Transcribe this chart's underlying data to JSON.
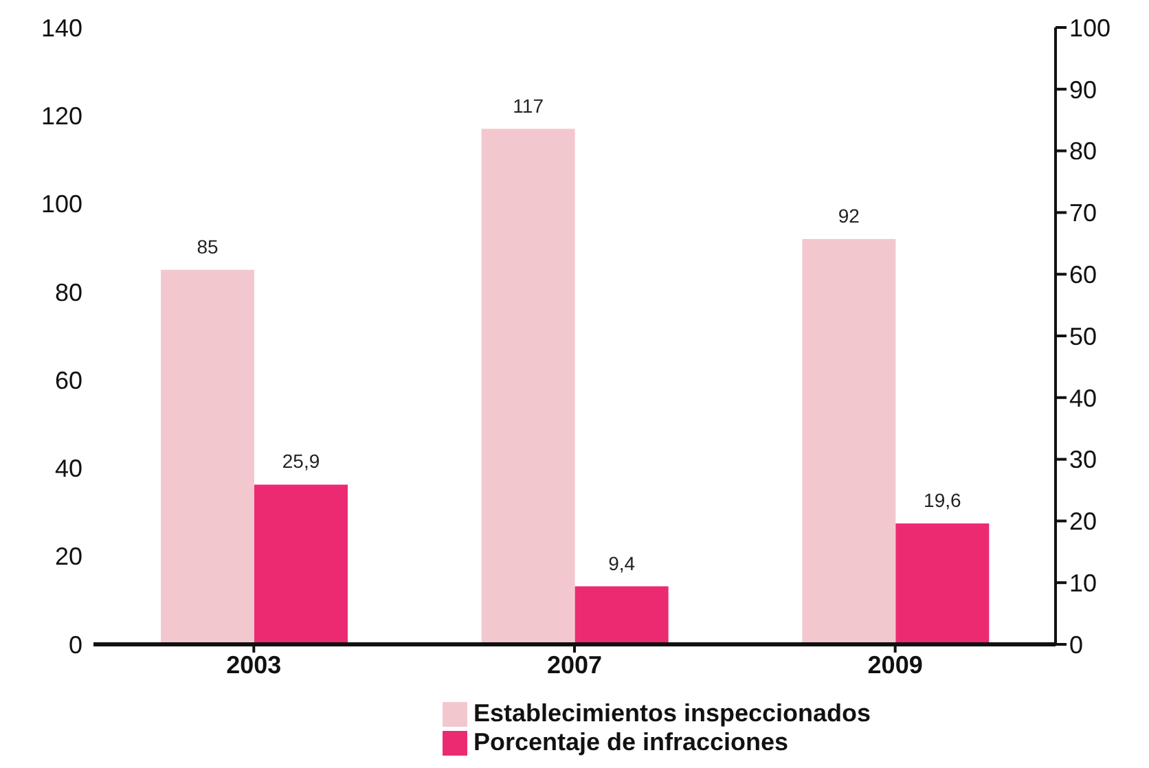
{
  "chart_data": {
    "type": "bar",
    "categories": [
      "2003",
      "2007",
      "2009"
    ],
    "series": [
      {
        "name": "Establecimientos inspeccionados",
        "color": "#f2c8ce",
        "values": [
          85,
          117,
          92
        ],
        "value_labels": [
          "85",
          "117",
          "92"
        ]
      },
      {
        "name": "Porcentaje de infracciones",
        "color": "#ec2a72",
        "values": [
          25.9,
          9.4,
          19.6
        ],
        "value_labels": [
          "25,9",
          "9,4",
          "19,6"
        ],
        "axis": "y2"
      }
    ],
    "ylim": [
      0,
      140
    ],
    "yticks": [
      0,
      20,
      40,
      60,
      80,
      100,
      120,
      140
    ],
    "y2lim": [
      0,
      100
    ],
    "y2ticks": [
      0,
      10,
      20,
      30,
      40,
      50,
      60,
      70,
      80,
      90,
      100
    ],
    "grid": false,
    "legend": "bottom"
  }
}
